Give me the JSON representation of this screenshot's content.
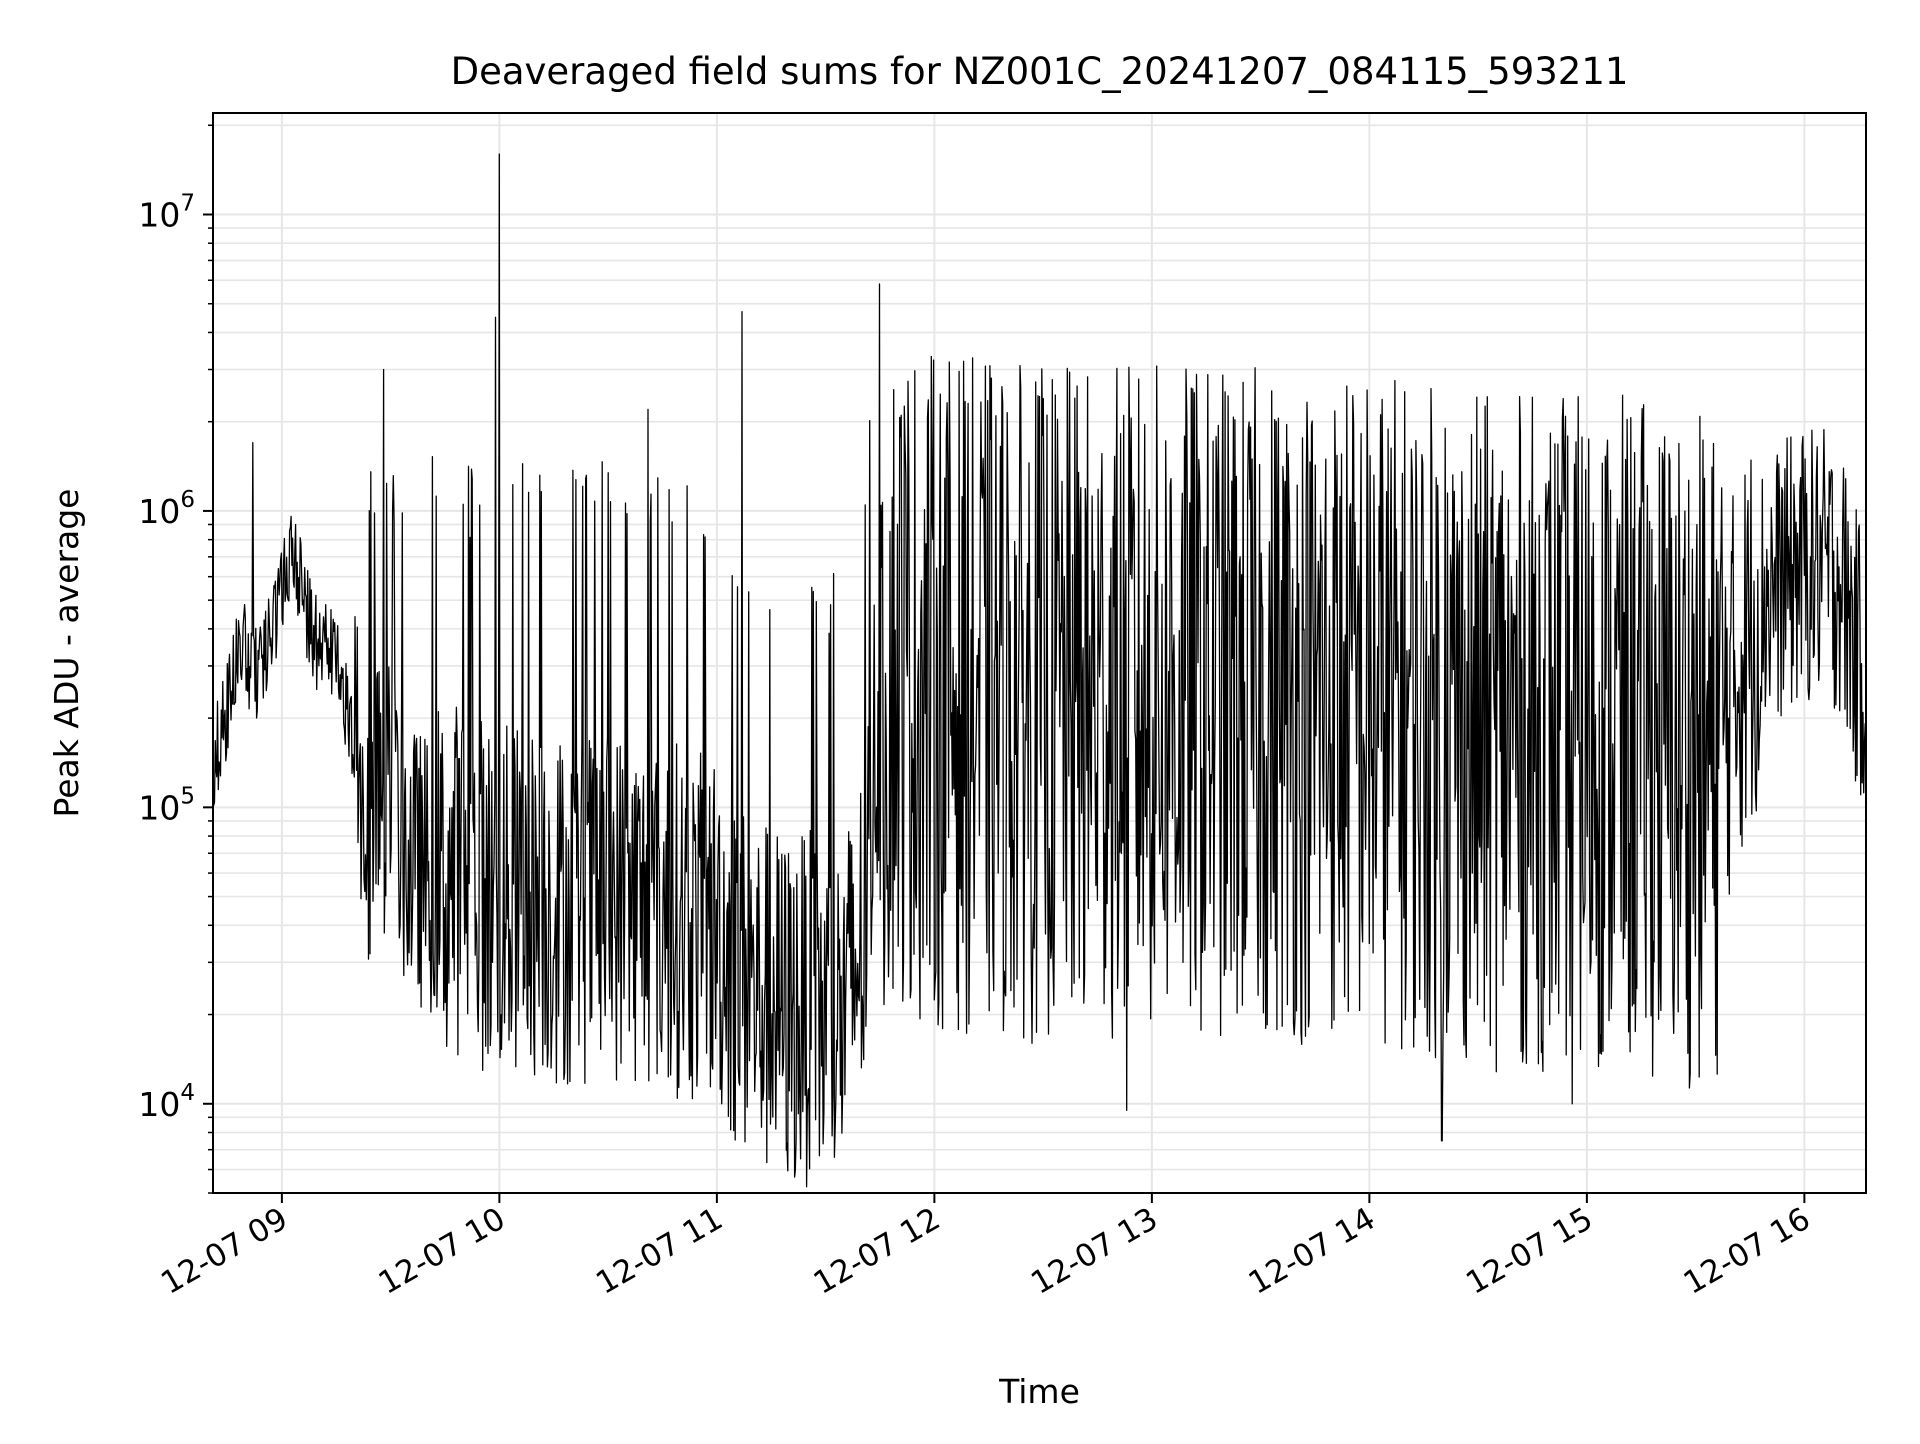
{
  "chart_data": {
    "type": "line",
    "title": "Deaveraged field sums for NZ001C_20241207_084115_593211",
    "xlabel": "Time",
    "ylabel": "Peak ADU - average",
    "y_scale": "log",
    "ylim": [
      5000,
      22000000
    ],
    "xlim": [
      "2024-12-07 08:41",
      "2024-12-07 16:17"
    ],
    "x_ticks": [
      {
        "value": "2024-12-07 09:00",
        "label": "12-07 09"
      },
      {
        "value": "2024-12-07 10:00",
        "label": "12-07 10"
      },
      {
        "value": "2024-12-07 11:00",
        "label": "12-07 11"
      },
      {
        "value": "2024-12-07 12:00",
        "label": "12-07 12"
      },
      {
        "value": "2024-12-07 13:00",
        "label": "12-07 13"
      },
      {
        "value": "2024-12-07 14:00",
        "label": "12-07 14"
      },
      {
        "value": "2024-12-07 15:00",
        "label": "12-07 15"
      },
      {
        "value": "2024-12-07 16:00",
        "label": "12-07 16"
      }
    ],
    "y_ticks": [
      {
        "value": 10000,
        "base": "10",
        "exp": "4"
      },
      {
        "value": 100000,
        "base": "10",
        "exp": "5"
      },
      {
        "value": 1000000,
        "base": "10",
        "exp": "6"
      },
      {
        "value": 10000000,
        "base": "10",
        "exp": "7"
      }
    ],
    "grid": true,
    "line_color": "#000000",
    "grid_color": "#e6e6e6",
    "series": [
      {
        "x": [
          "2024-12-07 08:41",
          "2024-12-07 08:45",
          "2024-12-07 08:48",
          "2024-12-07 08:50",
          "2024-12-07 08:52",
          "2024-12-07 08:55",
          "2024-12-07 08:58",
          "2024-12-07 09:01",
          "2024-12-07 09:03",
          "2024-12-07 09:05",
          "2024-12-07 09:08",
          "2024-12-07 09:10",
          "2024-12-07 09:12",
          "2024-12-07 09:15",
          "2024-12-07 09:18",
          "2024-12-07 09:21",
          "2024-12-07 09:24",
          "2024-12-07 09:27",
          "2024-12-07 09:30",
          "2024-12-07 09:35",
          "2024-12-07 09:40",
          "2024-12-07 09:45",
          "2024-12-07 09:50",
          "2024-12-07 09:55",
          "2024-12-07 10:00",
          "2024-12-07 10:10",
          "2024-12-07 10:20",
          "2024-12-07 10:30",
          "2024-12-07 10:40",
          "2024-12-07 10:50",
          "2024-12-07 10:56",
          "2024-12-07 11:00",
          "2024-12-07 11:05",
          "2024-12-07 11:10",
          "2024-12-07 11:15",
          "2024-12-07 11:20",
          "2024-12-07 11:25",
          "2024-12-07 11:30",
          "2024-12-07 11:35",
          "2024-12-07 11:38",
          "2024-12-07 11:41",
          "2024-12-07 11:44",
          "2024-12-07 11:48",
          "2024-12-07 12:00",
          "2024-12-07 12:30",
          "2024-12-07 13:00",
          "2024-12-07 13:30",
          "2024-12-07 14:00",
          "2024-12-07 14:30",
          "2024-12-07 15:00",
          "2024-12-07 15:20",
          "2024-12-07 15:35",
          "2024-12-07 15:42",
          "2024-12-07 15:48",
          "2024-12-07 15:55",
          "2024-12-07 16:00",
          "2024-12-07 16:05",
          "2024-12-07 16:10",
          "2024-12-07 16:14",
          "2024-12-07 16:17"
        ],
        "y": [
          140000,
          220000,
          330000,
          340000,
          270000,
          300000,
          420000,
          620000,
          700000,
          600000,
          400000,
          350000,
          380000,
          330000,
          200000,
          140000,
          90000,
          110000,
          110000,
          65000,
          60000,
          55000,
          60000,
          52000,
          48000,
          48000,
          45000,
          48000,
          45000,
          42000,
          38000,
          40000,
          28000,
          24000,
          22000,
          20000,
          21000,
          19000,
          20000,
          28000,
          40000,
          200000,
          300000,
          250000,
          220000,
          230000,
          220000,
          220000,
          180000,
          180000,
          170000,
          150000,
          300000,
          500000,
          600000,
          650000,
          650000,
          600000,
          350000,
          280000
        ]
      }
    ],
    "spikes": [
      {
        "x": "2024-12-07 08:52",
        "y": 1700000
      },
      {
        "x": "2024-12-07 09:28",
        "y": 3000000
      },
      {
        "x": "2024-12-07 09:59",
        "y": 4500000
      },
      {
        "x": "2024-12-07 10:00",
        "y": 16000000
      },
      {
        "x": "2024-12-07 10:41",
        "y": 2200000
      },
      {
        "x": "2024-12-07 11:07",
        "y": 4700000
      },
      {
        "x": "2024-12-07 14:21",
        "y": 1900000
      },
      {
        "x": "2024-12-07 12:53",
        "y": 9500
      },
      {
        "x": "2024-12-07 14:20",
        "y": 7500
      },
      {
        "x": "2024-12-07 14:56",
        "y": 10000
      }
    ]
  }
}
